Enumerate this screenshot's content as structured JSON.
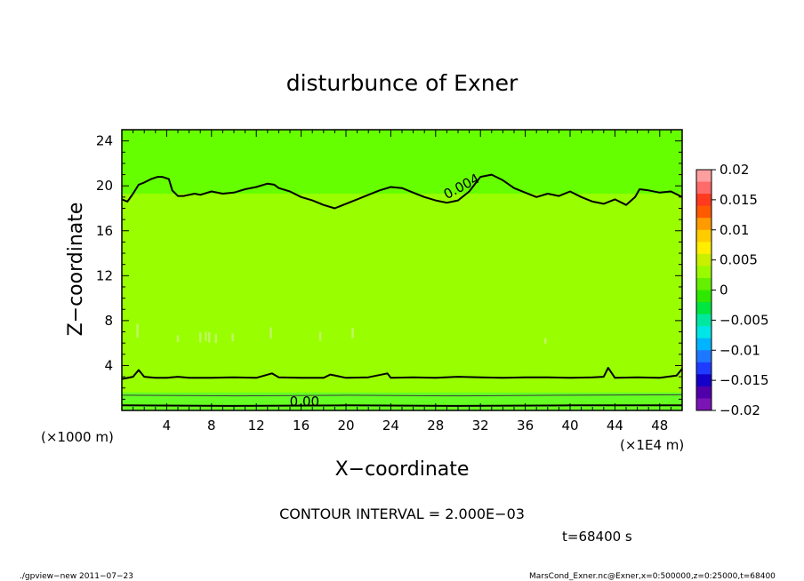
{
  "chart_data": {
    "type": "contour",
    "title": "disturbunce of Exner",
    "xlabel": "X−coordinate",
    "ylabel": "Z−coordinate",
    "y_unit_label": "(×1000 m)",
    "x_unit_label": "(×1E4 m)",
    "xlim": [
      0,
      50
    ],
    "ylim": [
      0,
      25
    ],
    "x_ticks": [
      4,
      8,
      12,
      16,
      20,
      24,
      28,
      32,
      36,
      40,
      44,
      48
    ],
    "y_ticks": [
      4,
      8,
      12,
      16,
      20,
      24
    ],
    "x_tick_labels": [
      "4",
      "8",
      "12",
      "16",
      "20",
      "24",
      "28",
      "32",
      "36",
      "40",
      "44",
      "48"
    ],
    "y_tick_labels": [
      "4",
      "8",
      "12",
      "16",
      "20",
      "24"
    ],
    "contour_labels": [
      {
        "text": "0.004",
        "x": 30.5,
        "y": 19.6
      },
      {
        "text": "0.00",
        "x": 16.3,
        "y": 0.4
      }
    ],
    "contours": [
      {
        "name": "0.004",
        "x": [
          0,
          0.5,
          1,
          1.5,
          2,
          2.6,
          3.2,
          3.6,
          4.2,
          4.5,
          5,
          5.5,
          6,
          6.5,
          7,
          8,
          9,
          10,
          11,
          12,
          13,
          13.6,
          14,
          15,
          16,
          17,
          18,
          19,
          20,
          21,
          22,
          23,
          24,
          25,
          26,
          27,
          28,
          29,
          30,
          31,
          32,
          33,
          34,
          35,
          36,
          37,
          38,
          39,
          40,
          41,
          42,
          43,
          44,
          45,
          45.8,
          46.2,
          47,
          48,
          49,
          50
        ],
        "y": [
          18.8,
          18.6,
          19.3,
          20.1,
          20.3,
          20.6,
          20.8,
          20.8,
          20.6,
          19.6,
          19.1,
          19.1,
          19.2,
          19.3,
          19.2,
          19.5,
          19.3,
          19.4,
          19.7,
          19.9,
          20.2,
          20.1,
          19.8,
          19.5,
          19.0,
          18.7,
          18.3,
          18.0,
          18.4,
          18.8,
          19.2,
          19.6,
          19.9,
          19.8,
          19.4,
          19.0,
          18.7,
          18.5,
          18.7,
          19.5,
          20.8,
          21.0,
          20.5,
          19.8,
          19.4,
          19.0,
          19.3,
          19.1,
          19.5,
          19.0,
          18.6,
          18.4,
          18.8,
          18.3,
          19.0,
          19.7,
          19.6,
          19.4,
          19.5,
          19.0
        ]
      },
      {
        "name": "lower",
        "x": [
          0,
          1,
          1.5,
          2,
          3,
          4,
          5,
          6,
          8,
          10,
          12,
          13.4,
          14,
          16,
          18,
          18.6,
          20,
          22,
          23.7,
          24,
          26,
          28,
          30,
          32,
          34,
          36,
          38,
          40,
          42,
          43,
          43.4,
          44,
          46,
          48,
          49.5,
          50
        ],
        "y": [
          2.8,
          3.0,
          3.6,
          3.0,
          2.9,
          2.9,
          3.0,
          2.9,
          2.9,
          2.95,
          2.9,
          3.3,
          2.95,
          2.9,
          2.9,
          3.2,
          2.9,
          2.95,
          3.3,
          2.9,
          2.95,
          2.9,
          3.0,
          2.95,
          2.9,
          2.95,
          2.95,
          2.9,
          2.95,
          3.0,
          3.8,
          2.9,
          2.95,
          2.9,
          3.1,
          3.7
        ]
      },
      {
        "name": "thin-1",
        "x": [
          0,
          10,
          20,
          30,
          40,
          50
        ],
        "y": [
          1.35,
          1.3,
          1.35,
          1.3,
          1.35,
          1.4
        ]
      },
      {
        "name": "0.00",
        "x": [
          0,
          10,
          20,
          30,
          40,
          50
        ],
        "y": [
          0.45,
          0.4,
          0.45,
          0.4,
          0.45,
          0.45
        ]
      }
    ],
    "colorbar": {
      "tick_labels": [
        "0.02",
        "0.015",
        "0.01",
        "0.005",
        "0",
        "−0.005",
        "−0.01",
        "−0.015",
        "−0.02"
      ],
      "colors": [
        "#ff9e9e",
        "#ff6a6a",
        "#ff3a1e",
        "#ff5a00",
        "#ff9a00",
        "#ffcc00",
        "#ffee00",
        "#c8f000",
        "#9afa00",
        "#64f000",
        "#2ee800",
        "#00e640",
        "#00e8a0",
        "#00e6e6",
        "#00b4ff",
        "#1e78ff",
        "#1e3cff",
        "#1400c8",
        "#5000aa",
        "#7a14b4"
      ]
    },
    "field_bands": {
      "base": "#99ff00",
      "top": "#66ff00",
      "bottom": "#66ff22"
    }
  },
  "footer": {
    "contour_interval": "CONTOUR INTERVAL = 2.000E−03",
    "time": "t=68400 s",
    "program": "./gpview−new  2011−07−23",
    "source": "MarsCond_Exner.nc@Exner,x=0:500000,z=0:25000,t=68400"
  }
}
